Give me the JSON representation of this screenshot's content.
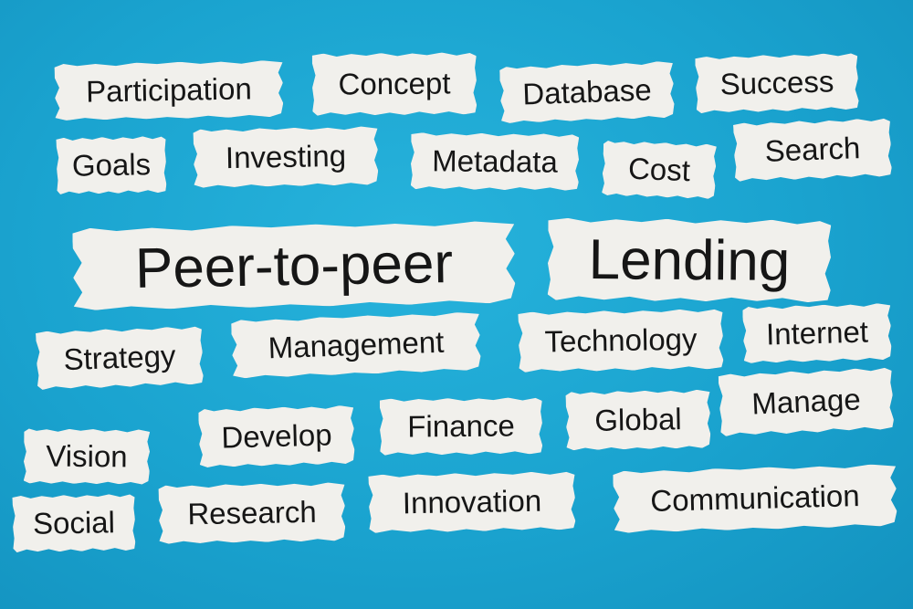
{
  "scene": {
    "background": "#1aa3cf",
    "paper": "#f1f0ec",
    "ink": "#161616"
  },
  "words": {
    "participation": "Participation",
    "concept": "Concept",
    "database": "Database",
    "success": "Success",
    "goals": "Goals",
    "investing": "Investing",
    "metadata": "Metadata",
    "cost": "Cost",
    "search": "Search",
    "peer_to_peer": "Peer-to-peer",
    "lending": "Lending",
    "strategy": "Strategy",
    "management": "Management",
    "technology": "Technology",
    "internet": "Internet",
    "develop": "Develop",
    "finance": "Finance",
    "global": "Global",
    "manage": "Manage",
    "vision": "Vision",
    "social": "Social",
    "research": "Research",
    "innovation": "Innovation",
    "communication": "Communication"
  }
}
